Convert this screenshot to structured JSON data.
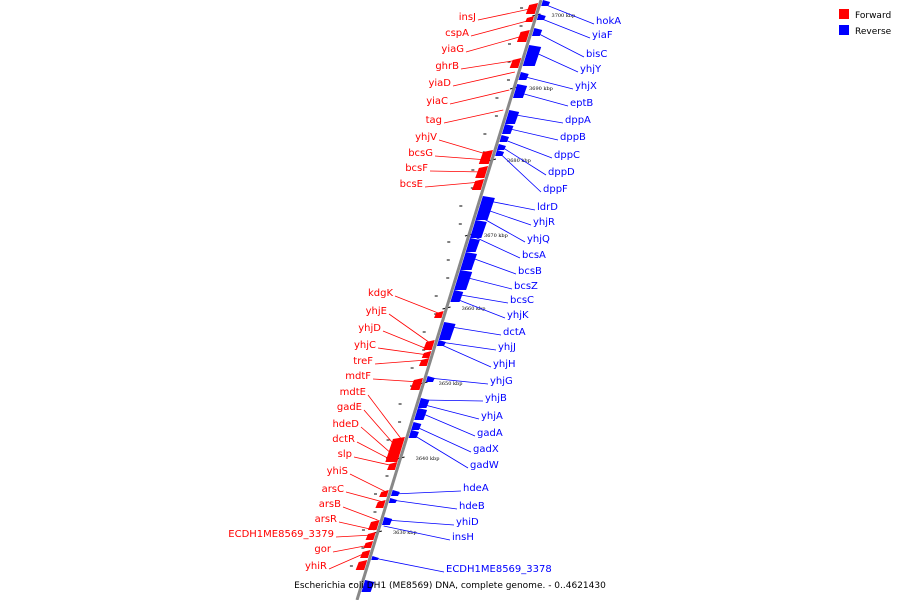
{
  "caption": "Escherichia coli DH1 (ME8569) DNA, complete genome. - 0..4621430",
  "legend": [
    {
      "label": "Forward",
      "color": "#ff0000"
    },
    {
      "label": "Reverse",
      "color": "#0000ff"
    }
  ],
  "colors": {
    "forward": "#ff0000",
    "reverse": "#0000ff",
    "axis": "#888888"
  },
  "ticks": [
    "3700 kbp",
    "3690 kbp",
    "3680 kbp",
    "3670 kbp",
    "3660 kbp",
    "3650 kbp",
    "3640 kbp",
    "3630 kbp"
  ],
  "forward_genes": [
    "insJ",
    "cspA",
    "yiaG",
    "ghrB",
    "yiaD",
    "yiaC",
    "tag",
    "yhjV",
    "bcsG",
    "bcsF",
    "bcsE",
    "kdgK",
    "yhjE",
    "yhjD",
    "yhjC",
    "treF",
    "mdtF",
    "mdtE",
    "gadE",
    "hdeD",
    "dctR",
    "slp",
    "yhiS",
    "arsC",
    "arsB",
    "arsR",
    "ECDH1ME8569_3379",
    "gor",
    "yhiR"
  ],
  "reverse_genes": [
    "hokA",
    "yiaF",
    "bisC",
    "yhjY",
    "yhjX",
    "eptB",
    "dppA",
    "dppB",
    "dppC",
    "dppD",
    "dppF",
    "ldrD",
    "yhjR",
    "yhjQ",
    "bcsA",
    "bcsB",
    "bcsZ",
    "bcsC",
    "yhjK",
    "dctA",
    "yhjJ",
    "yhjH",
    "yhjG",
    "yhjB",
    "yhjA",
    "gadA",
    "gadX",
    "gadW",
    "hdeA",
    "hdeB",
    "yhiD",
    "insH",
    "ECDH1ME8569_3378"
  ]
}
